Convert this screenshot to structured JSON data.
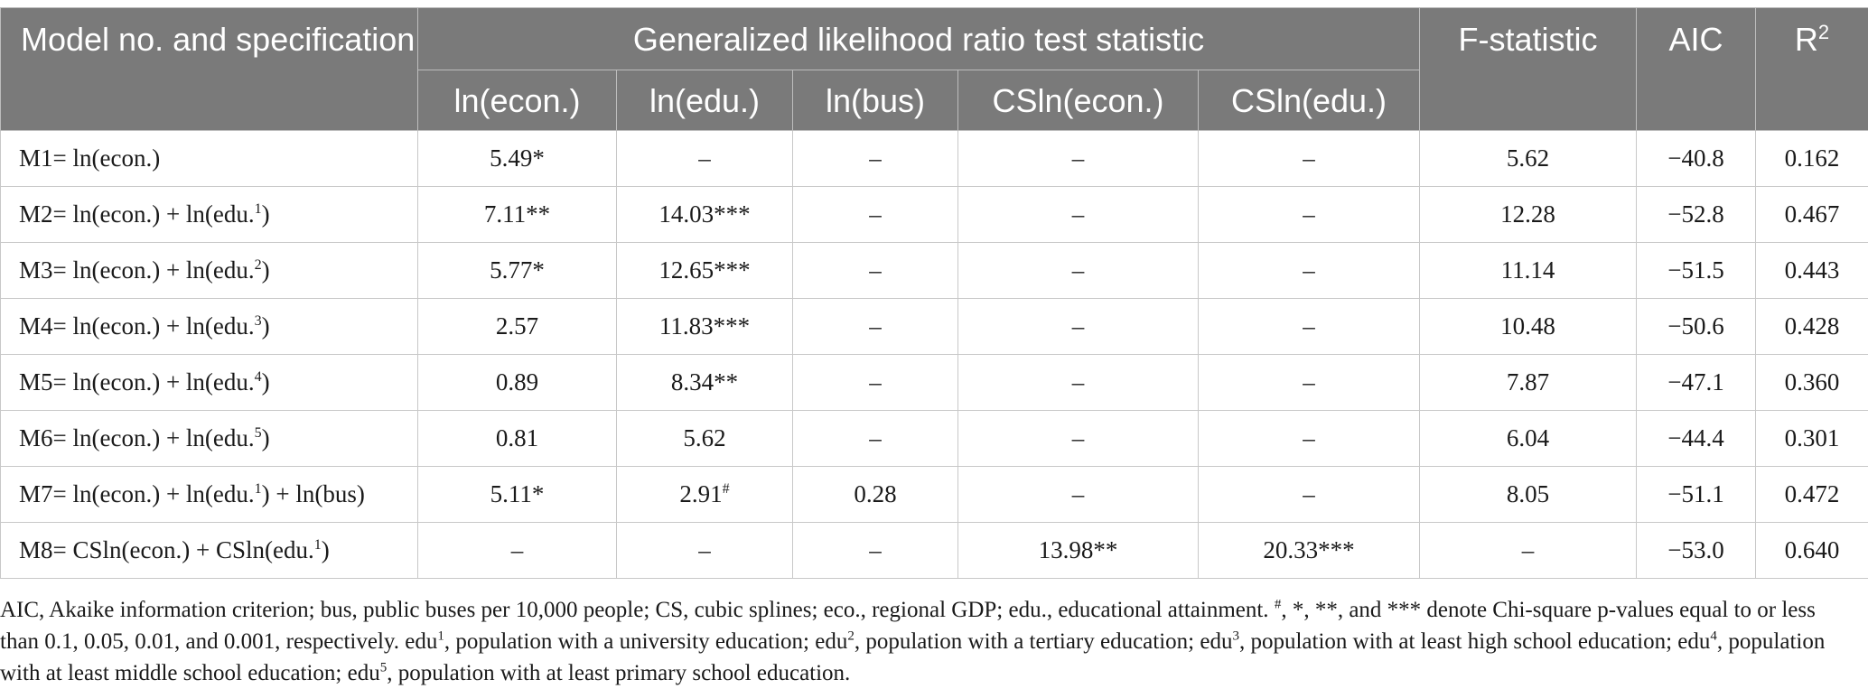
{
  "header": {
    "model_col": "Model no. and specification",
    "group_label": "Generalized likelihood ratio test statistic",
    "sub_cols": [
      "ln(econ.)",
      "ln(edu.)",
      "ln(bus)",
      "CSln(econ.)",
      "CSln(edu.)"
    ],
    "f_stat": "F-statistic",
    "aic": "AIC",
    "r2_base": "R",
    "r2_sup": "2"
  },
  "rows": [
    {
      "model": "M1",
      "spec": "= ln(econ.)",
      "edu_sup": "",
      "spec_tail": "",
      "econ": "5.49*",
      "edu": "–",
      "edu_mark": "",
      "bus": "–",
      "cs_econ": "–",
      "cs_edu": "–",
      "f": "5.62",
      "aic": "−40.8",
      "r2": "0.162"
    },
    {
      "model": "M2",
      "spec": "= ln(econ.) + ln(edu.",
      "edu_sup": "1",
      "spec_tail": ")",
      "econ": "7.11**",
      "edu": "14.03***",
      "edu_mark": "",
      "bus": "–",
      "cs_econ": "–",
      "cs_edu": "–",
      "f": "12.28",
      "aic": "−52.8",
      "r2": "0.467"
    },
    {
      "model": "M3",
      "spec": "= ln(econ.) + ln(edu.",
      "edu_sup": "2",
      "spec_tail": ")",
      "econ": "5.77*",
      "edu": "12.65***",
      "edu_mark": "",
      "bus": "–",
      "cs_econ": "–",
      "cs_edu": "–",
      "f": "11.14",
      "aic": "−51.5",
      "r2": "0.443"
    },
    {
      "model": "M4",
      "spec": "= ln(econ.) + ln(edu.",
      "edu_sup": "3",
      "spec_tail": ")",
      "econ": "2.57",
      "edu": "11.83***",
      "edu_mark": "",
      "bus": "–",
      "cs_econ": "–",
      "cs_edu": "–",
      "f": "10.48",
      "aic": "−50.6",
      "r2": "0.428"
    },
    {
      "model": "M5",
      "spec": "= ln(econ.) + ln(edu.",
      "edu_sup": "4",
      "spec_tail": ")",
      "econ": "0.89",
      "edu": "8.34**",
      "edu_mark": "",
      "bus": "–",
      "cs_econ": "–",
      "cs_edu": "–",
      "f": "7.87",
      "aic": "−47.1",
      "r2": "0.360"
    },
    {
      "model": "M6",
      "spec": "= ln(econ.) + ln(edu.",
      "edu_sup": "5",
      "spec_tail": ")",
      "econ": "0.81",
      "edu": "5.62",
      "edu_mark": "",
      "bus": "–",
      "cs_econ": "–",
      "cs_edu": "–",
      "f": "6.04",
      "aic": "−44.4",
      "r2": "0.301"
    },
    {
      "model": "M7",
      "spec": "= ln(econ.) + ln(edu.",
      "edu_sup": "1",
      "spec_tail": ") + ln(bus)",
      "econ": "5.11*",
      "edu": "2.91",
      "edu_mark": "#",
      "bus": "0.28",
      "cs_econ": "–",
      "cs_edu": "–",
      "f": "8.05",
      "aic": "−51.1",
      "r2": "0.472"
    },
    {
      "model": "M8",
      "spec": "= CSln(econ.) + CSln(edu.",
      "edu_sup": "1",
      "spec_tail": ")",
      "econ": "–",
      "edu": "–",
      "edu_mark": "",
      "bus": "–",
      "cs_econ": "13.98**",
      "cs_edu": "20.33***",
      "f": "–",
      "aic": "−53.0",
      "r2": "0.640"
    }
  ],
  "footnote": {
    "p1": "AIC, Akaike information criterion; bus, public buses per 10,000 people; CS, cubic splines; eco., regional GDP; edu., educational attainment.",
    "p1_sup": "#",
    "p2": ", *, **, and *** denote Chi-square p-values equal to or less than 0.1, 0.05, 0.01, and 0.001, respectively. edu",
    "n1": "1",
    "p3": ", population with a university education; edu",
    "n2": "2",
    "p4": ", population with a tertiary education; edu",
    "n3": "3",
    "p5": ", population with at least high school education; edu",
    "n4": "4",
    "p6": ", population with at least middle school education; edu",
    "n5": "5",
    "p7": ", population with at least primary school education."
  }
}
